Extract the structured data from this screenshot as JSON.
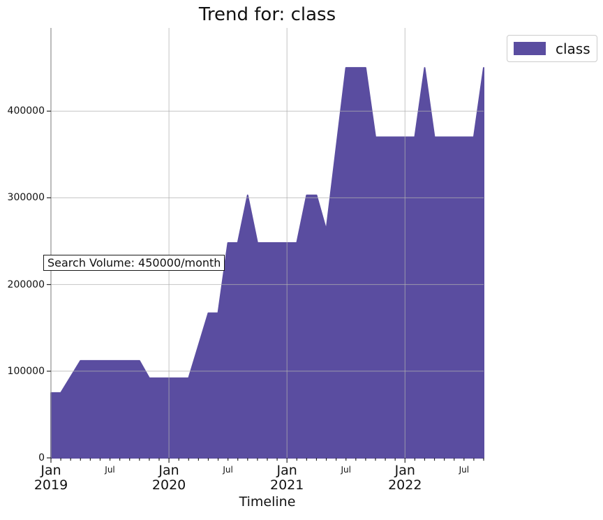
{
  "title": "Trend for: class",
  "annotation": {
    "text": "Search Volume: 450000/month"
  },
  "legend": {
    "items": [
      {
        "label": "class",
        "color": "#5a4da0"
      }
    ]
  },
  "colors": {
    "fill": "#5a4da0",
    "grid": "#b0b0b0",
    "spine": "#909090",
    "tick": "#262626",
    "text": "#111111"
  },
  "chart_data": {
    "type": "area",
    "title": "Trend for: class",
    "xlabel": "Timeline",
    "ylabel": "",
    "grid": true,
    "legend_position": "upper right",
    "series": [
      {
        "name": "class"
      }
    ],
    "x": [
      "2019-01",
      "2019-02",
      "2019-03",
      "2019-04",
      "2019-05",
      "2019-06",
      "2019-07",
      "2019-08",
      "2019-09",
      "2019-10",
      "2019-11",
      "2019-12",
      "2020-01",
      "2020-02",
      "2020-03",
      "2020-04",
      "2020-05",
      "2020-06",
      "2020-07",
      "2020-08",
      "2020-09",
      "2020-10",
      "2020-11",
      "2020-12",
      "2021-01",
      "2021-02",
      "2021-03",
      "2021-04",
      "2021-05",
      "2021-06",
      "2021-07",
      "2021-08",
      "2021-09",
      "2021-10",
      "2021-11",
      "2021-12",
      "2022-01",
      "2022-02",
      "2022-03",
      "2022-04",
      "2022-05",
      "2022-06",
      "2022-07",
      "2022-08",
      "2022-09"
    ],
    "values": [
      75000,
      75000,
      93500,
      112000,
      112000,
      112000,
      112000,
      112000,
      112000,
      112000,
      92000,
      92000,
      92000,
      92000,
      92000,
      129500,
      167000,
      167000,
      248000,
      248000,
      303000,
      248000,
      248000,
      248000,
      248000,
      248000,
      303000,
      303000,
      263000,
      356500,
      450000,
      450000,
      450000,
      370000,
      370000,
      370000,
      370000,
      370000,
      450000,
      370000,
      370000,
      370000,
      370000,
      370000,
      450000
    ],
    "ylim": [
      0,
      496000
    ],
    "yticks": [
      {
        "value": 0,
        "label": "0"
      },
      {
        "value": 100000,
        "label": "100000"
      },
      {
        "value": 200000,
        "label": "200000"
      },
      {
        "value": 300000,
        "label": "300000"
      },
      {
        "value": 400000,
        "label": "400000"
      }
    ],
    "xticks_major": [
      {
        "index": 0,
        "label": "Jan",
        "year": "2019"
      },
      {
        "index": 12,
        "label": "Jan",
        "year": "2020"
      },
      {
        "index": 24,
        "label": "Jan",
        "year": "2021"
      },
      {
        "index": 36,
        "label": "Jan",
        "year": "2022"
      }
    ],
    "xticks_minor_labeled": [
      {
        "index": 6,
        "label": "Jul"
      },
      {
        "index": 18,
        "label": "Jul"
      },
      {
        "index": 30,
        "label": "Jul"
      },
      {
        "index": 42,
        "label": "Jul"
      }
    ]
  }
}
